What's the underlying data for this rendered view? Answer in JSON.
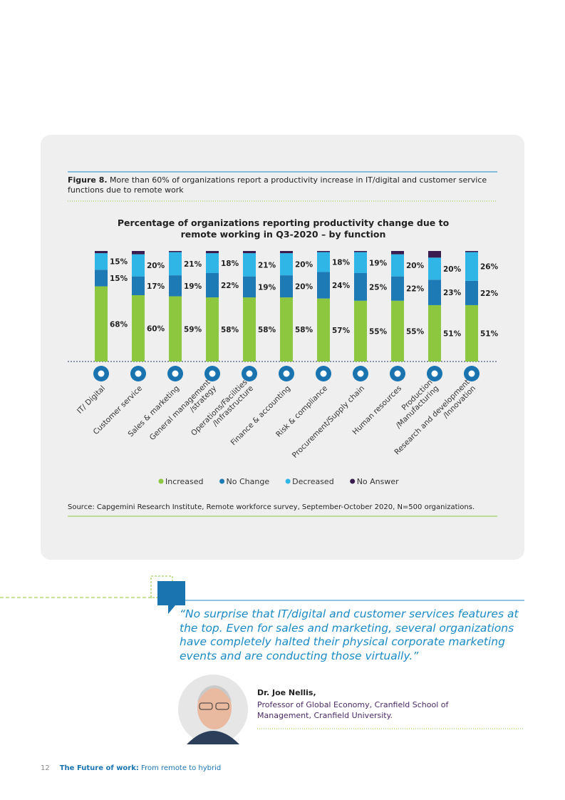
{
  "figure": {
    "label": "Figure 8.",
    "caption": "More than 60% of organizations report a productivity increase in IT/digital and customer service functions due to remote work"
  },
  "chart_data": {
    "type": "stacked-bar",
    "title": "Percentage of organizations reporting productivity change due to remote working in Q3-2020 – by function",
    "categories": [
      "IT/ Digital",
      "Customer service",
      "Sales & marketing",
      "General management\n/strategy",
      "Operations/Facilities\n/Infrastructure",
      "Finance & accounting",
      "Risk & compliance",
      "Procurement/Supply chain",
      "Human resources",
      "Production\n/Manufacturing",
      "Research and development\n/Innovation"
    ],
    "series": [
      {
        "name": "Increased",
        "color": "#8dc63f",
        "values": [
          68,
          60,
          59,
          58,
          58,
          58,
          57,
          55,
          55,
          51,
          51
        ],
        "value_labels": [
          "68%",
          "60%",
          "59%",
          "58%",
          "58%",
          "58%",
          "57%",
          "55%",
          "55%",
          "51%",
          "51%"
        ]
      },
      {
        "name": "No Change",
        "color": "#1d7ab5",
        "values": [
          15,
          17,
          19,
          22,
          19,
          20,
          24,
          25,
          22,
          23,
          22
        ],
        "value_labels": [
          "15%",
          "17%",
          "19%",
          "22%",
          "19%",
          "20%",
          "24%",
          "25%",
          "22%",
          "23%",
          "22%"
        ]
      },
      {
        "name": "Decreased",
        "color": "#2fb5e6",
        "values": [
          15,
          20,
          21,
          18,
          21,
          20,
          18,
          19,
          20,
          20,
          26
        ],
        "value_labels": [
          "15%",
          "20%",
          "21%",
          "18%",
          "21%",
          "20%",
          "18%",
          "19%",
          "20%",
          "20%",
          "26%"
        ]
      },
      {
        "name": "No Answer",
        "color": "#3b1c4e",
        "values": [
          2,
          3,
          1,
          2,
          2,
          2,
          1,
          1,
          3,
          6,
          1
        ]
      }
    ],
    "legend": "bottom"
  },
  "source": "Source: Capgemini Research Institute, Remote workforce survey, September-October 2020, N=500 organizations.",
  "quote": {
    "text": "“No surprise that IT/digital and customer services features at the top. Even for sales and marketing, several organizations have completely halted their physical corporate marketing events and are conducting those virtually.”",
    "name": "Dr. Joe Nellis,",
    "role": "Professor of Global Economy, Cranfield School of Management, Cranfield University."
  },
  "footer": {
    "page": "12",
    "title": "The Future of work:",
    "subtitle": "From remote to hybrid"
  }
}
